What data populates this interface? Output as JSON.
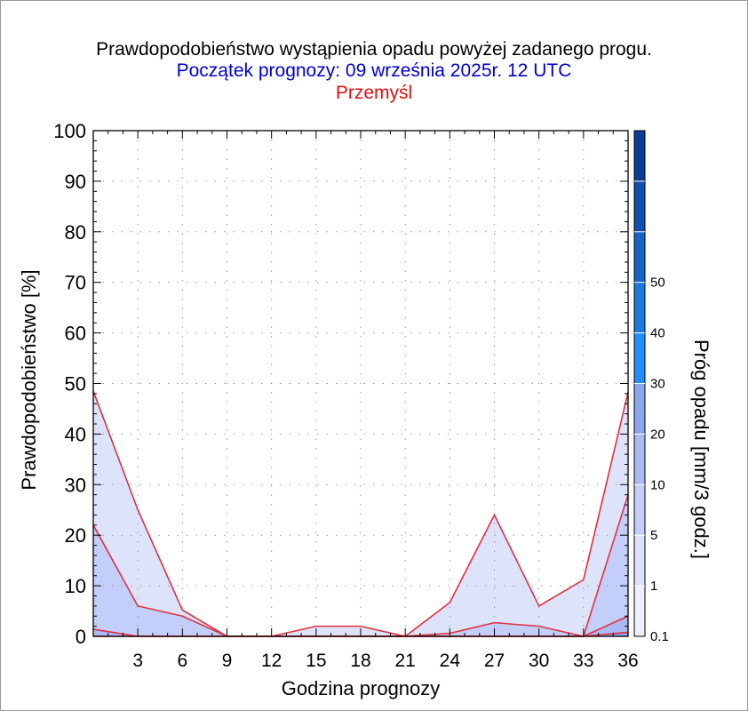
{
  "title": "Prawdopodobieństwo wystąpienia opadu powyżej zadanego progu.",
  "subtitle": "Początek prognozy: 09 września 2025r. 12 UTC",
  "location": "Przemyśl",
  "colors": {
    "fill_01": "#dde3fb",
    "fill_1": "#c3cffa",
    "fill_5": "#a9baf5",
    "fill_10": "#8aa6f0",
    "line": "#e03040",
    "title_blue": "#0000d0",
    "title_red": "#e01010"
  },
  "chart_data": {
    "type": "area",
    "title": "Prawdopodobieństwo wystąpienia opadu powyżej zadanego progu.",
    "xlabel": "Godzina prognozy",
    "ylabel": "Prawdopodobieństwo [%]",
    "x": [
      0,
      3,
      6,
      9,
      12,
      15,
      18,
      21,
      24,
      27,
      30,
      33,
      36
    ],
    "xticks": [
      "3",
      "6",
      "9",
      "12",
      "15",
      "18",
      "21",
      "24",
      "27",
      "30",
      "33",
      "36"
    ],
    "xlim": [
      0,
      36
    ],
    "ylim": [
      0,
      100
    ],
    "yticks": [
      "0",
      "10",
      "20",
      "30",
      "40",
      "50",
      "60",
      "70",
      "80",
      "90",
      "100"
    ],
    "grid": true,
    "series": [
      {
        "threshold": 0.1,
        "values": [
          48.5,
          25,
          5.2,
          0,
          0,
          2,
          2,
          0,
          6.7,
          24,
          6,
          11.2,
          48.3
        ]
      },
      {
        "threshold": 1,
        "values": [
          22,
          6,
          4,
          0,
          0,
          0,
          0,
          0,
          0.6,
          2.7,
          2,
          0,
          28
        ]
      },
      {
        "threshold": 5,
        "values": [
          1.4,
          0,
          0,
          0,
          0,
          0,
          0,
          0,
          0,
          0,
          0,
          0,
          4
        ]
      },
      {
        "threshold": 10,
        "values": [
          0,
          0,
          0,
          0,
          0,
          0,
          0,
          0,
          0,
          0,
          0,
          0,
          0.8
        ]
      }
    ],
    "colorbar": {
      "label": "Próg opadu [mm/3 godz.]",
      "labels": [
        "0.1",
        "1",
        "5",
        "10",
        "20",
        "30",
        "40",
        "50"
      ],
      "colors": [
        "#eceffd",
        "#dde3fb",
        "#c3cffa",
        "#a9baf5",
        "#8aa6f0",
        "#1e90ff",
        "#1a7ae0",
        "#1565c8",
        "#0f50b0",
        "#0a3c98"
      ]
    }
  }
}
